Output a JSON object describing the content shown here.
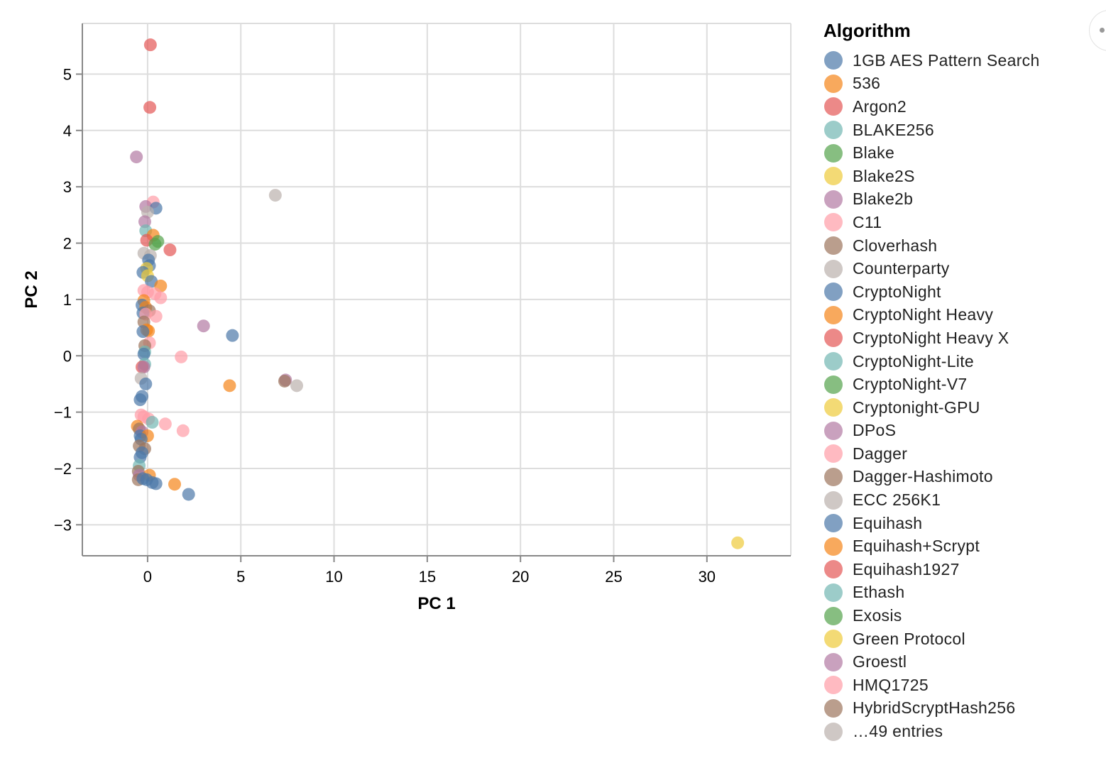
{
  "chart_data": {
    "type": "scatter",
    "xlabel": "PC 1",
    "ylabel": "PC 2",
    "xlim": [
      -3.5,
      34.5
    ],
    "ylim": [
      -3.55,
      5.9
    ],
    "xticks": [
      0,
      5,
      10,
      15,
      20,
      25,
      30
    ],
    "yticks": [
      -3,
      -2,
      -1,
      0,
      1,
      2,
      3,
      4,
      5
    ],
    "xtick_labels": [
      "0",
      "5",
      "10",
      "15",
      "20",
      "25",
      "30"
    ],
    "ytick_labels": [
      "−3",
      "−2",
      "−1",
      "0",
      "1",
      "2",
      "3",
      "4",
      "5"
    ],
    "grid": true,
    "legend_position": "right",
    "legend": {
      "title": "Algorithm",
      "entries": [
        {
          "name": "1GB AES Pattern Search",
          "color": "#4c78a8"
        },
        {
          "name": "536",
          "color": "#f58518"
        },
        {
          "name": "Argon2",
          "color": "#e45756"
        },
        {
          "name": "BLAKE256",
          "color": "#72b7b2"
        },
        {
          "name": "Blake",
          "color": "#54a24b"
        },
        {
          "name": "Blake2S",
          "color": "#eeca3b"
        },
        {
          "name": "Blake2b",
          "color": "#b279a2"
        },
        {
          "name": "C11",
          "color": "#ff9da6"
        },
        {
          "name": "Cloverhash",
          "color": "#9d755d"
        },
        {
          "name": "Counterparty",
          "color": "#bab0ac"
        },
        {
          "name": "CryptoNight",
          "color": "#4c78a8"
        },
        {
          "name": "CryptoNight Heavy",
          "color": "#f58518"
        },
        {
          "name": "CryptoNight Heavy X",
          "color": "#e45756"
        },
        {
          "name": "CryptoNight-Lite",
          "color": "#72b7b2"
        },
        {
          "name": "CryptoNight-V7",
          "color": "#54a24b"
        },
        {
          "name": "Cryptonight-GPU",
          "color": "#eeca3b"
        },
        {
          "name": "DPoS",
          "color": "#b279a2"
        },
        {
          "name": "Dagger",
          "color": "#ff9da6"
        },
        {
          "name": "Dagger-Hashimoto",
          "color": "#9d755d"
        },
        {
          "name": "ECC 256K1",
          "color": "#bab0ac"
        },
        {
          "name": "Equihash",
          "color": "#4c78a8"
        },
        {
          "name": "Equihash+Scrypt",
          "color": "#f58518"
        },
        {
          "name": "Equihash1927",
          "color": "#e45756"
        },
        {
          "name": "Ethash",
          "color": "#72b7b2"
        },
        {
          "name": "Exosis",
          "color": "#54a24b"
        },
        {
          "name": "Green Protocol",
          "color": "#eeca3b"
        },
        {
          "name": "Groestl",
          "color": "#b279a2"
        },
        {
          "name": "HMQ1725",
          "color": "#ff9da6"
        },
        {
          "name": "HybridScryptHash256",
          "color": "#9d755d"
        },
        {
          "name": "…49 entries",
          "color": "#bab0ac"
        }
      ]
    },
    "points": [
      {
        "x": 0.15,
        "y": 5.52,
        "c": "#e45756"
      },
      {
        "x": 0.12,
        "y": 4.41,
        "c": "#e45756"
      },
      {
        "x": -0.6,
        "y": 3.53,
        "c": "#b279a2"
      },
      {
        "x": 6.85,
        "y": 2.85,
        "c": "#bab0ac"
      },
      {
        "x": 0.3,
        "y": 2.73,
        "c": "#ff9da6"
      },
      {
        "x": -0.1,
        "y": 2.65,
        "c": "#b279a2"
      },
      {
        "x": 0.45,
        "y": 2.62,
        "c": "#4c78a8"
      },
      {
        "x": 0.0,
        "y": 2.55,
        "c": "#bab0ac"
      },
      {
        "x": -0.15,
        "y": 2.38,
        "c": "#b279a2"
      },
      {
        "x": -0.1,
        "y": 2.22,
        "c": "#72b7b2"
      },
      {
        "x": 0.3,
        "y": 2.14,
        "c": "#f58518"
      },
      {
        "x": 0.55,
        "y": 2.03,
        "c": "#54a24b"
      },
      {
        "x": -0.05,
        "y": 2.05,
        "c": "#e45756"
      },
      {
        "x": 0.4,
        "y": 1.98,
        "c": "#54a24b"
      },
      {
        "x": 1.2,
        "y": 1.88,
        "c": "#e45756"
      },
      {
        "x": -0.2,
        "y": 1.82,
        "c": "#bab0ac"
      },
      {
        "x": 0.15,
        "y": 1.78,
        "c": "#bab0ac"
      },
      {
        "x": 0.05,
        "y": 1.7,
        "c": "#4c78a8"
      },
      {
        "x": 0.1,
        "y": 1.6,
        "c": "#4c78a8"
      },
      {
        "x": -0.05,
        "y": 1.55,
        "c": "#eeca3b"
      },
      {
        "x": -0.25,
        "y": 1.48,
        "c": "#4c78a8"
      },
      {
        "x": 0.0,
        "y": 1.42,
        "c": "#eeca3b"
      },
      {
        "x": 0.2,
        "y": 1.32,
        "c": "#4c78a8"
      },
      {
        "x": 0.7,
        "y": 1.24,
        "c": "#f58518"
      },
      {
        "x": -0.2,
        "y": 1.16,
        "c": "#ff9da6"
      },
      {
        "x": 0.0,
        "y": 1.13,
        "c": "#ff9da6"
      },
      {
        "x": 0.4,
        "y": 1.1,
        "c": "#ff9da6"
      },
      {
        "x": 0.7,
        "y": 1.03,
        "c": "#ff9da6"
      },
      {
        "x": -0.2,
        "y": 0.98,
        "c": "#f58518"
      },
      {
        "x": -0.3,
        "y": 0.9,
        "c": "#4c78a8"
      },
      {
        "x": -0.1,
        "y": 0.86,
        "c": "#f58518"
      },
      {
        "x": 0.1,
        "y": 0.8,
        "c": "#9d755d"
      },
      {
        "x": -0.25,
        "y": 0.76,
        "c": "#4c78a8"
      },
      {
        "x": -0.1,
        "y": 0.74,
        "c": "#ff9da6"
      },
      {
        "x": 0.45,
        "y": 0.7,
        "c": "#ff9da6"
      },
      {
        "x": -0.2,
        "y": 0.6,
        "c": "#9d755d"
      },
      {
        "x": 3.0,
        "y": 0.53,
        "c": "#b279a2"
      },
      {
        "x": -0.05,
        "y": 0.46,
        "c": "#f58518"
      },
      {
        "x": 0.05,
        "y": 0.44,
        "c": "#f58518"
      },
      {
        "x": -0.25,
        "y": 0.43,
        "c": "#4c78a8"
      },
      {
        "x": 4.55,
        "y": 0.36,
        "c": "#4c78a8"
      },
      {
        "x": 0.1,
        "y": 0.23,
        "c": "#ff9da6"
      },
      {
        "x": -0.15,
        "y": 0.18,
        "c": "#9d755d"
      },
      {
        "x": -0.15,
        "y": 0.07,
        "c": "#72b7b2"
      },
      {
        "x": -0.2,
        "y": 0.03,
        "c": "#4c78a8"
      },
      {
        "x": 1.8,
        "y": -0.02,
        "c": "#ff9da6"
      },
      {
        "x": -0.15,
        "y": -0.15,
        "c": "#72b7b2"
      },
      {
        "x": -0.3,
        "y": -0.2,
        "c": "#e45756"
      },
      {
        "x": -0.2,
        "y": -0.2,
        "c": "#b279a2"
      },
      {
        "x": -0.35,
        "y": -0.4,
        "c": "#bab0ac"
      },
      {
        "x": -0.1,
        "y": -0.5,
        "c": "#4c78a8"
      },
      {
        "x": 7.4,
        "y": -0.43,
        "c": "#b279a2"
      },
      {
        "x": 7.35,
        "y": -0.45,
        "c": "#9d755d"
      },
      {
        "x": 4.4,
        "y": -0.53,
        "c": "#f58518"
      },
      {
        "x": 8.0,
        "y": -0.53,
        "c": "#bab0ac"
      },
      {
        "x": -0.3,
        "y": -0.72,
        "c": "#4c78a8"
      },
      {
        "x": -0.4,
        "y": -0.78,
        "c": "#4c78a8"
      },
      {
        "x": -0.35,
        "y": -1.05,
        "c": "#ff9da6"
      },
      {
        "x": -0.2,
        "y": -1.08,
        "c": "#ff9da6"
      },
      {
        "x": 0.05,
        "y": -1.12,
        "c": "#ff9da6"
      },
      {
        "x": 0.25,
        "y": -1.18,
        "c": "#72b7b2"
      },
      {
        "x": 0.95,
        "y": -1.21,
        "c": "#ff9da6"
      },
      {
        "x": -0.55,
        "y": -1.25,
        "c": "#f58518"
      },
      {
        "x": -0.45,
        "y": -1.3,
        "c": "#9d755d"
      },
      {
        "x": 1.9,
        "y": -1.33,
        "c": "#ff9da6"
      },
      {
        "x": -0.3,
        "y": -1.35,
        "c": "#b279a2"
      },
      {
        "x": -0.4,
        "y": -1.42,
        "c": "#4c78a8"
      },
      {
        "x": 0.0,
        "y": -1.42,
        "c": "#f58518"
      },
      {
        "x": -0.35,
        "y": -1.48,
        "c": "#4c78a8"
      },
      {
        "x": -0.45,
        "y": -1.6,
        "c": "#9d755d"
      },
      {
        "x": -0.15,
        "y": -1.65,
        "c": "#9d755d"
      },
      {
        "x": -0.3,
        "y": -1.72,
        "c": "#4c78a8"
      },
      {
        "x": -0.4,
        "y": -1.8,
        "c": "#4c78a8"
      },
      {
        "x": -0.45,
        "y": -1.95,
        "c": "#72b7b2"
      },
      {
        "x": -0.5,
        "y": -2.05,
        "c": "#9d755d"
      },
      {
        "x": -0.45,
        "y": -2.12,
        "c": "#b279a2"
      },
      {
        "x": 0.1,
        "y": -2.12,
        "c": "#f58518"
      },
      {
        "x": -0.5,
        "y": -2.2,
        "c": "#9d755d"
      },
      {
        "x": -0.25,
        "y": -2.18,
        "c": "#4c78a8"
      },
      {
        "x": -0.05,
        "y": -2.2,
        "c": "#4c78a8"
      },
      {
        "x": 0.25,
        "y": -2.25,
        "c": "#4c78a8"
      },
      {
        "x": 0.45,
        "y": -2.27,
        "c": "#4c78a8"
      },
      {
        "x": 1.45,
        "y": -2.28,
        "c": "#f58518"
      },
      {
        "x": 2.2,
        "y": -2.46,
        "c": "#4c78a8"
      },
      {
        "x": 31.65,
        "y": -3.32,
        "c": "#eeca3b"
      }
    ]
  }
}
